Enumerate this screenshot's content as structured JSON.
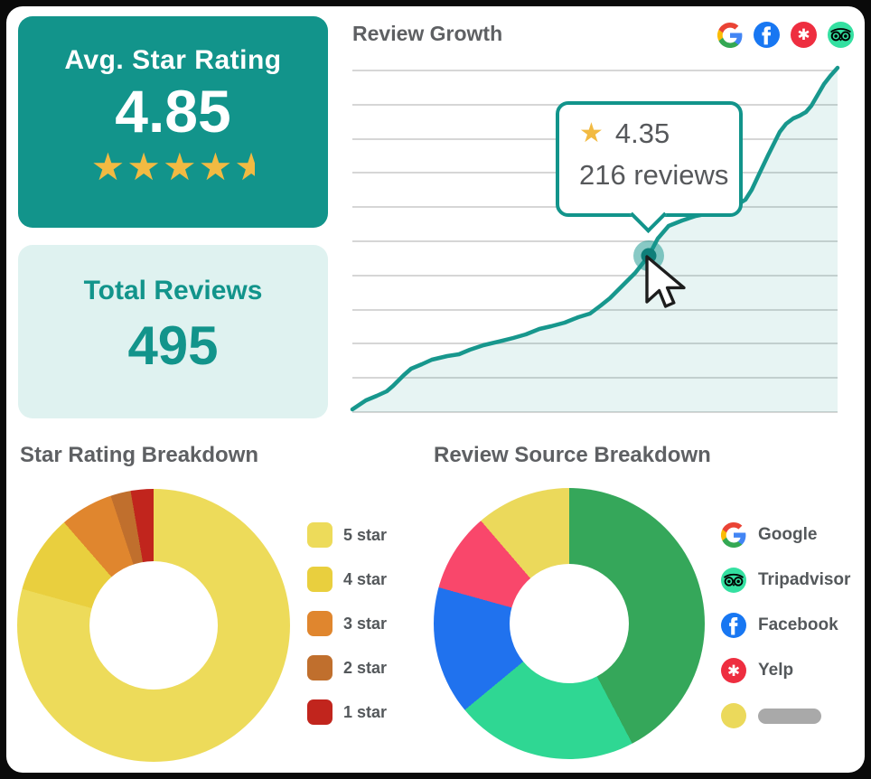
{
  "colors": {
    "teal": "#12948B",
    "teal_dark": "#0E7F79",
    "light_teal_bg": "#DFF2F0",
    "gold": "#F2BA42",
    "title_gray": "#5E6063",
    "text_gray": "#56585B",
    "grid": "#D6D6D6",
    "facebook_blue": "#1877F2",
    "yelp_red": "#EE2E40",
    "tripadvisor_green": "#34E0A1",
    "blob_gray": "#A9A9A9"
  },
  "glyphs": {
    "star": "★",
    "yelp_burst": "✱"
  },
  "cards": {
    "avg_rating": {
      "title": "Avg. Star Rating",
      "value": "4.85",
      "stars_full": "★★★★",
      "star_half": "★"
    },
    "total_reviews": {
      "title": "Total Reviews",
      "value": "495"
    }
  },
  "growth": {
    "title": "Review Growth",
    "source_icons": [
      "google",
      "facebook",
      "yelp",
      "tripadvisor"
    ],
    "tooltip": {
      "rating": "4.35",
      "reviews": "216 reviews"
    }
  },
  "sections": {
    "star_breakdown_title": "Star Rating Breakdown",
    "source_breakdown_title": "Review Source Breakdown"
  },
  "chart_data": [
    {
      "type": "area",
      "title": "Review Growth",
      "line_color": "#17978D",
      "fill_color": "rgba(23,150,140,0.10)",
      "grid_color": "#D6D6D6",
      "x_range": [
        0,
        537
      ],
      "y_range": [
        0,
        381
      ],
      "gridline_ys": [
        3,
        41,
        79,
        116,
        154,
        192,
        230,
        268,
        305,
        343,
        381
      ],
      "points": [
        [
          0,
          378
        ],
        [
          15,
          368
        ],
        [
          27,
          363
        ],
        [
          38,
          358
        ],
        [
          45,
          352
        ],
        [
          50,
          347
        ],
        [
          57,
          340
        ],
        [
          65,
          333
        ],
        [
          77,
          328
        ],
        [
          88,
          323
        ],
        [
          105,
          319
        ],
        [
          118,
          317
        ],
        [
          130,
          312
        ],
        [
          145,
          307
        ],
        [
          162,
          303
        ],
        [
          178,
          299
        ],
        [
          192,
          295
        ],
        [
          207,
          289
        ],
        [
          220,
          286
        ],
        [
          235,
          282
        ],
        [
          250,
          276
        ],
        [
          263,
          272
        ],
        [
          275,
          263
        ],
        [
          285,
          255
        ],
        [
          297,
          243
        ],
        [
          313,
          227
        ],
        [
          328,
          208
        ],
        [
          338,
          189
        ],
        [
          350,
          175
        ],
        [
          365,
          169
        ],
        [
          380,
          164
        ],
        [
          400,
          160
        ],
        [
          422,
          154
        ],
        [
          435,
          146
        ],
        [
          442,
          135
        ],
        [
          450,
          118
        ],
        [
          460,
          97
        ],
        [
          467,
          83
        ],
        [
          473,
          71
        ],
        [
          480,
          62
        ],
        [
          488,
          56
        ],
        [
          495,
          53
        ],
        [
          502,
          49
        ],
        [
          508,
          42
        ],
        [
          515,
          30
        ],
        [
          522,
          18
        ],
        [
          529,
          9
        ],
        [
          537,
          0
        ]
      ],
      "highlight": {
        "x": 328,
        "y": 208,
        "rating": "4.35",
        "reviews": 216,
        "dot_color": "#0E7F79",
        "halo_color": "rgba(18,148,139,0.5)"
      }
    },
    {
      "type": "donut",
      "title": "Star Rating Breakdown",
      "hole": 0.47,
      "legend_position": "right",
      "segments": [
        {
          "label": "5 star",
          "pct": 79.3,
          "color": "#EDDB5A"
        },
        {
          "label": "4 star",
          "pct": 9.3,
          "color": "#E9CF3E"
        },
        {
          "label": "3 star",
          "pct": 6.3,
          "color": "#E0862E"
        },
        {
          "label": "2 star",
          "pct": 2.4,
          "color": "#C06F2D"
        },
        {
          "label": "1 star",
          "pct": 2.7,
          "color": "#C1251D"
        }
      ]
    },
    {
      "type": "donut",
      "title": "Review Source Breakdown",
      "hole": 0.44,
      "legend_position": "right",
      "segments": [
        {
          "label": "Google",
          "pct": 42.3,
          "color": "#35A75A"
        },
        {
          "label": "Tripadvisor",
          "pct": 21.7,
          "color": "#2FD793"
        },
        {
          "label": "Facebook",
          "pct": 15.3,
          "color": "#2072EE"
        },
        {
          "label": "Yelp",
          "pct": 9.4,
          "color": "#F9476B"
        },
        {
          "label": "",
          "pct": 11.3,
          "color": "#EBD95B",
          "redacted": true
        }
      ]
    }
  ]
}
